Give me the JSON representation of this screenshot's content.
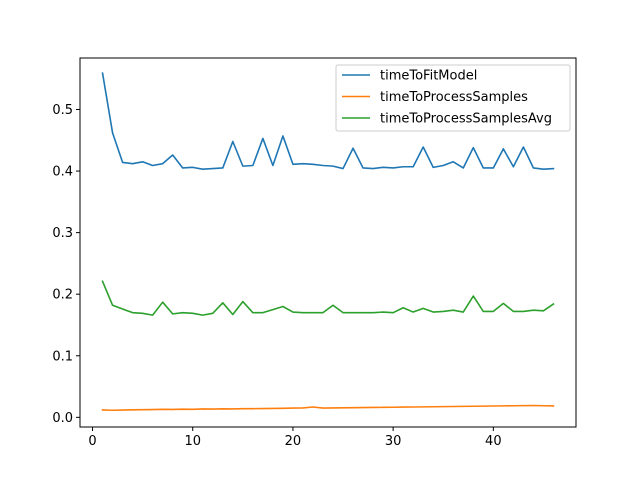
{
  "chart_data": {
    "type": "line",
    "title": "",
    "xlabel": "",
    "ylabel": "",
    "xlim": [
      -1.25,
      48.25
    ],
    "ylim": [
      -0.0157,
      0.5836
    ],
    "xticks": [
      0,
      10,
      20,
      30,
      40
    ],
    "yticks": [
      0.0,
      0.1,
      0.2,
      0.3,
      0.4,
      0.5
    ],
    "ytick_labels": [
      "0.0",
      "0.1",
      "0.2",
      "0.3",
      "0.4",
      "0.5"
    ],
    "grid": false,
    "legend_position": "top-right",
    "x": [
      1,
      2,
      3,
      4,
      5,
      6,
      7,
      8,
      9,
      10,
      11,
      12,
      13,
      14,
      15,
      16,
      17,
      18,
      19,
      20,
      21,
      22,
      23,
      24,
      25,
      26,
      27,
      28,
      29,
      30,
      31,
      32,
      33,
      34,
      35,
      36,
      37,
      38,
      39,
      40,
      41,
      42,
      43,
      44,
      45,
      46
    ],
    "series": [
      {
        "name": "timeToFitModel",
        "color": "#1f77b4",
        "values": [
          0.559,
          0.462,
          0.414,
          0.412,
          0.415,
          0.409,
          0.412,
          0.426,
          0.405,
          0.406,
          0.403,
          0.404,
          0.405,
          0.448,
          0.408,
          0.409,
          0.453,
          0.409,
          0.457,
          0.411,
          0.412,
          0.411,
          0.409,
          0.408,
          0.404,
          0.437,
          0.405,
          0.404,
          0.406,
          0.405,
          0.407,
          0.407,
          0.439,
          0.406,
          0.409,
          0.415,
          0.405,
          0.438,
          0.405,
          0.405,
          0.436,
          0.407,
          0.439,
          0.405,
          0.403,
          0.404
        ]
      },
      {
        "name": "timeToProcessSamples",
        "color": "#ff7f0e",
        "values": [
          0.012,
          0.0115,
          0.0118,
          0.0122,
          0.0124,
          0.0126,
          0.013,
          0.0128,
          0.0133,
          0.0131,
          0.0136,
          0.0135,
          0.0138,
          0.0137,
          0.014,
          0.0141,
          0.0143,
          0.0144,
          0.0146,
          0.015,
          0.0152,
          0.0168,
          0.015,
          0.0152,
          0.0154,
          0.0156,
          0.0158,
          0.016,
          0.0162,
          0.0164,
          0.0166,
          0.0168,
          0.017,
          0.0172,
          0.0174,
          0.0176,
          0.0178,
          0.018,
          0.0182,
          0.0184,
          0.0186,
          0.0188,
          0.019,
          0.0192,
          0.0188,
          0.0186
        ]
      },
      {
        "name": "timeToProcessSamplesAvg",
        "color": "#2ca02c",
        "values": [
          0.221,
          0.182,
          0.176,
          0.17,
          0.169,
          0.166,
          0.187,
          0.168,
          0.17,
          0.169,
          0.166,
          0.169,
          0.186,
          0.167,
          0.188,
          0.17,
          0.17,
          0.175,
          0.18,
          0.171,
          0.17,
          0.17,
          0.17,
          0.182,
          0.17,
          0.17,
          0.17,
          0.17,
          0.171,
          0.17,
          0.178,
          0.171,
          0.177,
          0.171,
          0.172,
          0.174,
          0.171,
          0.197,
          0.172,
          0.172,
          0.185,
          0.172,
          0.172,
          0.174,
          0.173,
          0.184
        ]
      }
    ]
  }
}
